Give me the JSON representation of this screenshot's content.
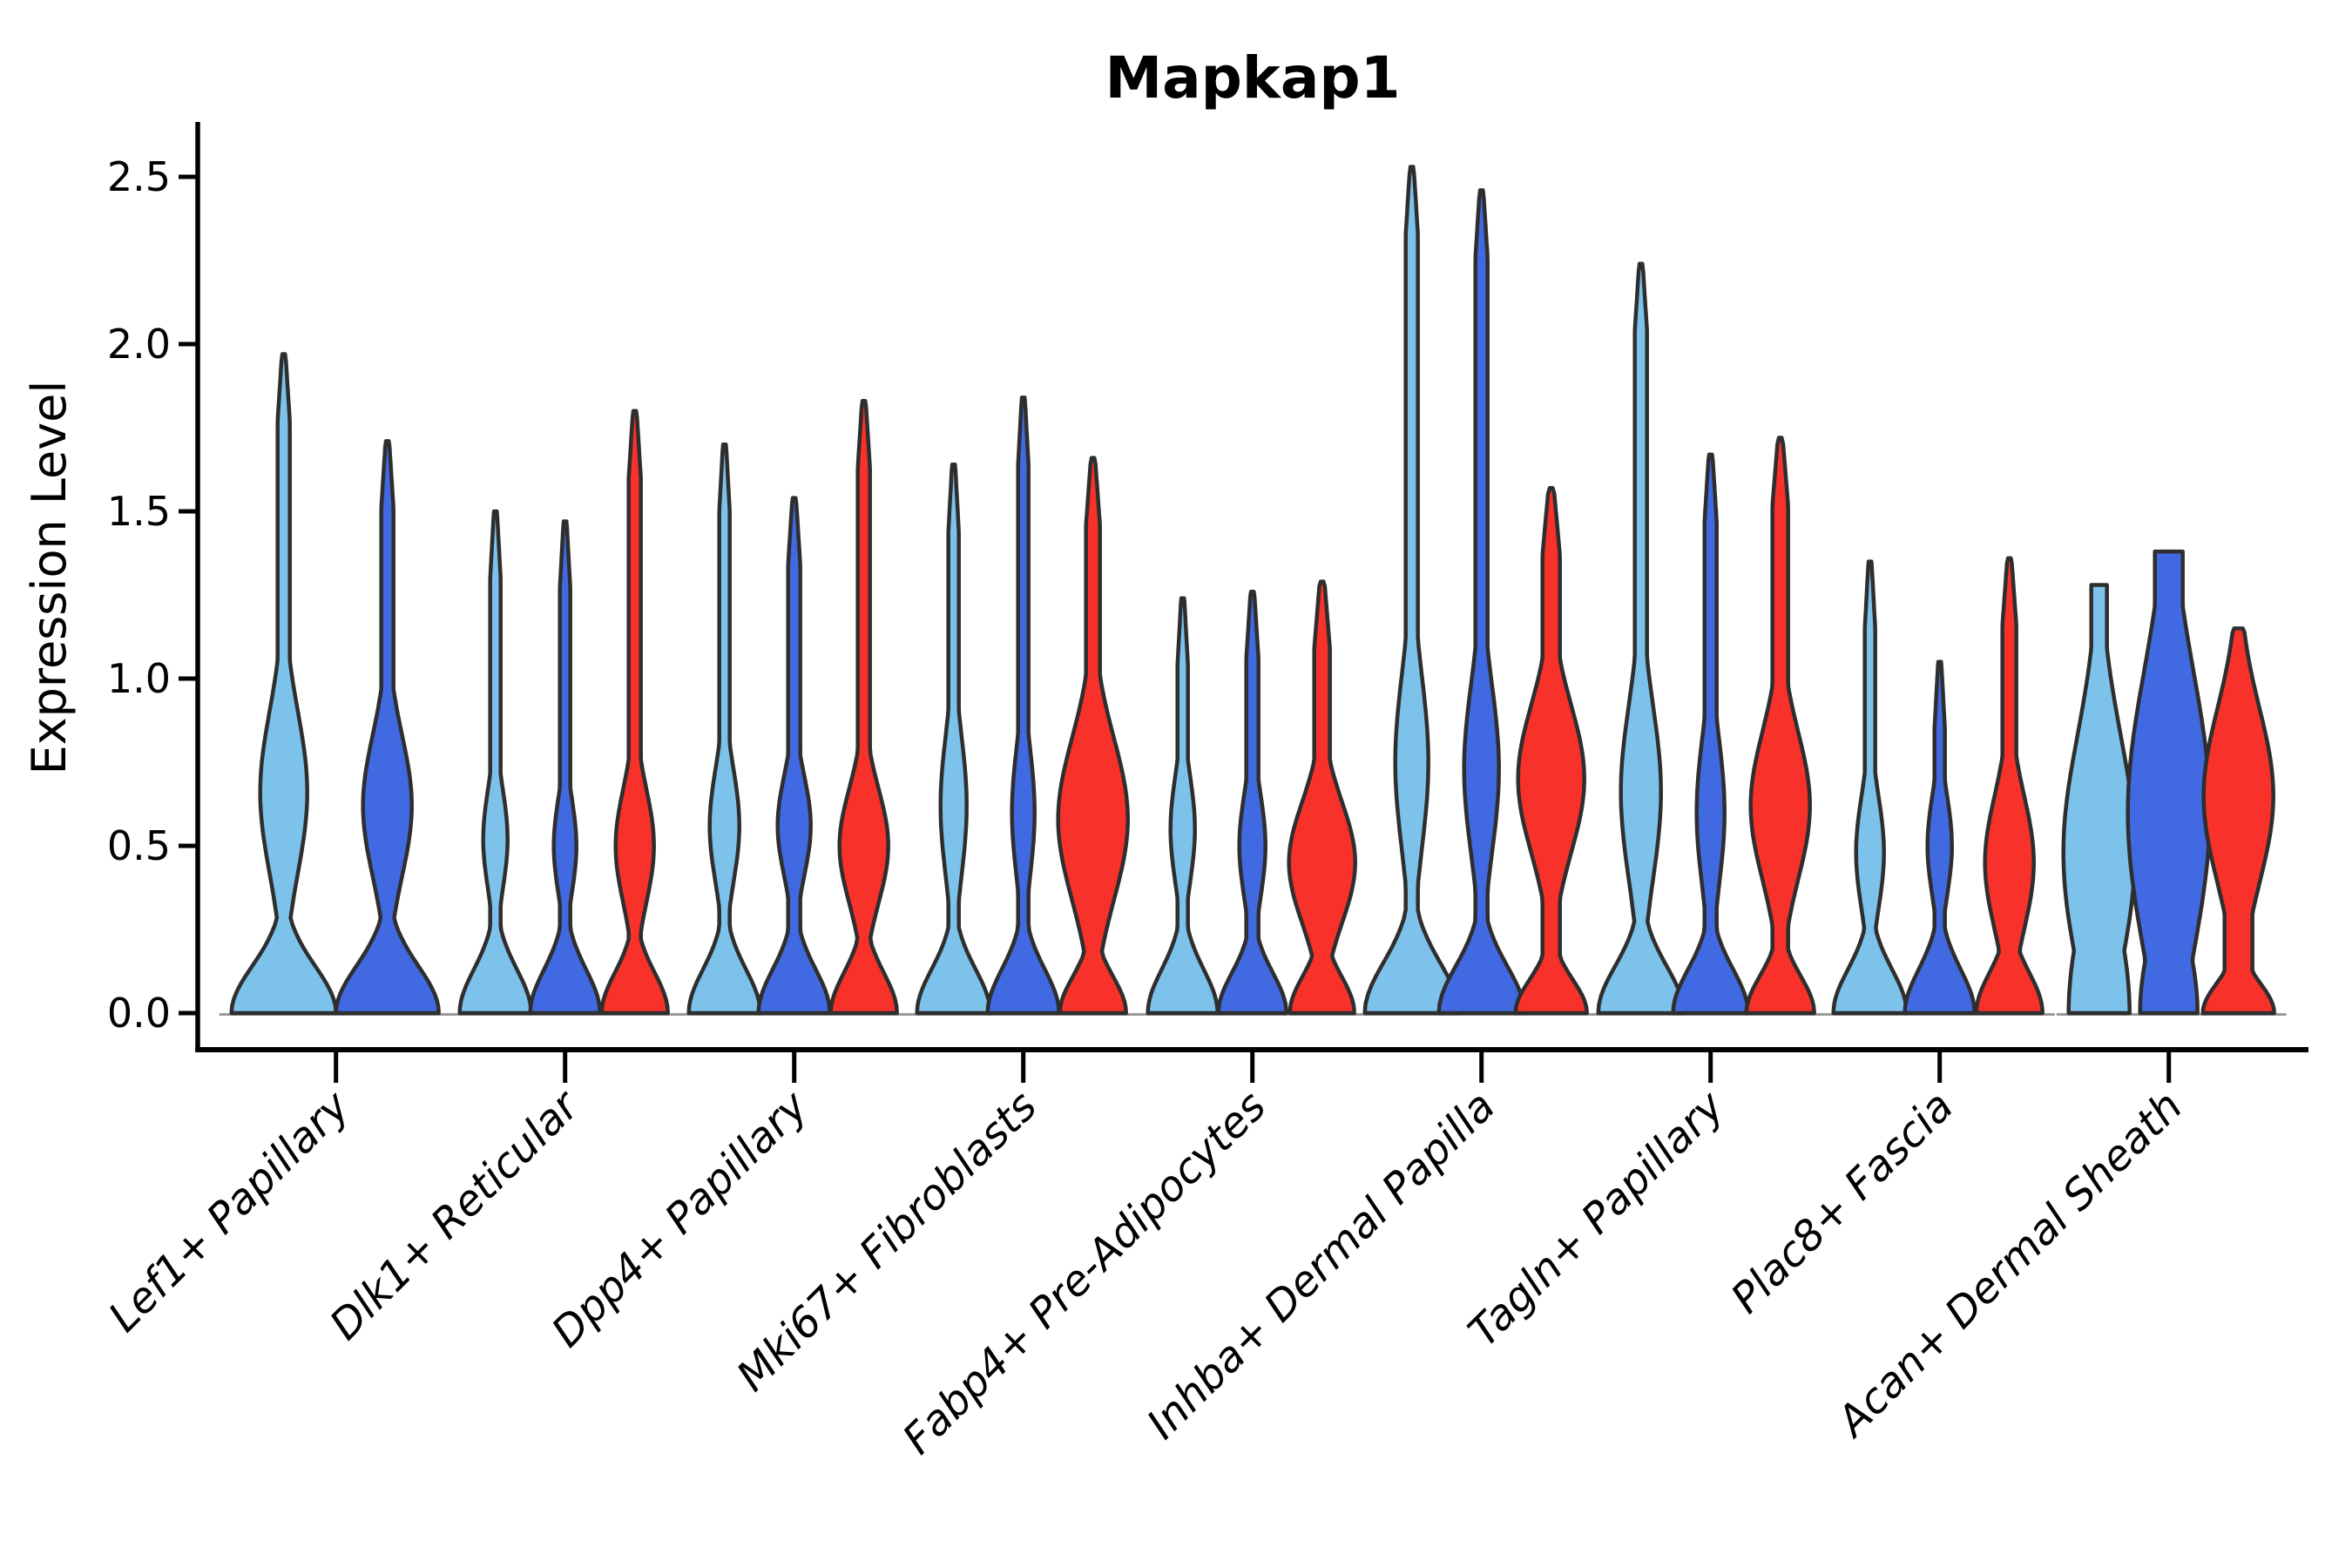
{
  "chart_data": {
    "type": "violin",
    "title": "Mapkap1",
    "ylabel": "Expression Level",
    "xlabel": "",
    "ytick_labels": [
      "0.0",
      "0.5",
      "1.0",
      "1.5",
      "2.0",
      "2.5"
    ],
    "ytick_values": [
      0.0,
      0.5,
      1.0,
      1.5,
      2.0,
      2.5
    ],
    "ylim": [
      -0.13,
      2.65
    ],
    "grid": false,
    "legend_position": "none",
    "colors": {
      "light_blue": "#7CC2EA",
      "blue": "#4169E1",
      "red": "#F8312A",
      "edge": "#2E2E2E",
      "baseline": "#999999",
      "axis": "#000000"
    },
    "categories": [
      "Lef1+ Papillary",
      "Dlk1+ Reticular",
      "Dpp4+ Papillary",
      "Mki67+ Fibroblasts",
      "Fabp4+ Pre-Adipocytes",
      "Inhba+ Dermal Papilla",
      "Tagln+ Papillary",
      "Plac8+ Fascia",
      "Acan+ Dermal Sheath"
    ],
    "series_note": "Each cluster shows up to 3 split violins left-to-right: light_blue, blue, red. Lef1+ Papillary has no red violin.",
    "violins": [
      {
        "group": 0,
        "color": "light_blue",
        "x_offset": -60,
        "max": 1.97,
        "base_hw": 60,
        "base_sigma": 0.14,
        "stem_hw": 7,
        "bulge_center": 0.66,
        "bulge_hw": 27,
        "bulge_sigma": 0.24,
        "tip_hw": 0
      },
      {
        "group": 0,
        "color": "blue",
        "x_offset": 59,
        "max": 1.71,
        "base_hw": 59,
        "base_sigma": 0.14,
        "stem_hw": 7,
        "bulge_center": 0.62,
        "bulge_hw": 28,
        "bulge_sigma": 0.21,
        "tip_hw": 0
      },
      {
        "group": 1,
        "color": "light_blue",
        "x_offset": -80,
        "max": 1.5,
        "base_hw": 41,
        "base_sigma": 0.13,
        "stem_hw": 6,
        "bulge_center": 0.52,
        "bulge_hw": 14,
        "bulge_sigma": 0.15,
        "tip_hw": 0
      },
      {
        "group": 1,
        "color": "blue",
        "x_offset": 0,
        "max": 1.47,
        "base_hw": 40,
        "base_sigma": 0.13,
        "stem_hw": 6,
        "bulge_center": 0.5,
        "bulge_hw": 13,
        "bulge_sigma": 0.14,
        "tip_hw": 0
      },
      {
        "group": 1,
        "color": "red",
        "x_offset": 80,
        "max": 1.8,
        "base_hw": 38,
        "base_sigma": 0.12,
        "stem_hw": 7,
        "bulge_center": 0.5,
        "bulge_hw": 22,
        "bulge_sigma": 0.17,
        "tip_hw": 0
      },
      {
        "group": 2,
        "color": "light_blue",
        "x_offset": -80,
        "max": 1.7,
        "base_hw": 41,
        "base_sigma": 0.13,
        "stem_hw": 6,
        "bulge_center": 0.56,
        "bulge_hw": 17,
        "bulge_sigma": 0.17,
        "tip_hw": 0
      },
      {
        "group": 2,
        "color": "blue",
        "x_offset": 0,
        "max": 1.54,
        "base_hw": 41,
        "base_sigma": 0.13,
        "stem_hw": 7,
        "bulge_center": 0.56,
        "bulge_hw": 19,
        "bulge_sigma": 0.15,
        "tip_hw": 0
      },
      {
        "group": 2,
        "color": "red",
        "x_offset": 80,
        "max": 1.83,
        "base_hw": 38,
        "base_sigma": 0.12,
        "stem_hw": 7,
        "bulge_center": 0.5,
        "bulge_hw": 28,
        "bulge_sigma": 0.17,
        "tip_hw": 0
      },
      {
        "group": 3,
        "color": "light_blue",
        "x_offset": -80,
        "max": 1.64,
        "base_hw": 42,
        "base_sigma": 0.13,
        "stem_hw": 6,
        "bulge_center": 0.62,
        "bulge_hw": 15,
        "bulge_sigma": 0.21,
        "tip_hw": 0
      },
      {
        "group": 3,
        "color": "blue",
        "x_offset": 0,
        "max": 1.84,
        "base_hw": 41,
        "base_sigma": 0.13,
        "stem_hw": 6,
        "bulge_center": 0.6,
        "bulge_hw": 13,
        "bulge_sigma": 0.19,
        "tip_hw": 0
      },
      {
        "group": 3,
        "color": "red",
        "x_offset": 80,
        "max": 1.66,
        "base_hw": 38,
        "base_sigma": 0.11,
        "stem_hw": 8,
        "bulge_center": 0.58,
        "bulge_hw": 40,
        "bulge_sigma": 0.24,
        "tip_hw": 0
      },
      {
        "group": 4,
        "color": "light_blue",
        "x_offset": -80,
        "max": 1.24,
        "base_hw": 40,
        "base_sigma": 0.13,
        "stem_hw": 6,
        "bulge_center": 0.55,
        "bulge_hw": 14,
        "bulge_sigma": 0.16,
        "tip_hw": 0
      },
      {
        "group": 4,
        "color": "blue",
        "x_offset": 0,
        "max": 1.26,
        "base_hw": 39,
        "base_sigma": 0.12,
        "stem_hw": 7,
        "bulge_center": 0.5,
        "bulge_hw": 15,
        "bulge_sigma": 0.16,
        "tip_hw": 0
      },
      {
        "group": 4,
        "color": "red",
        "x_offset": 80,
        "max": 1.29,
        "base_hw": 37,
        "base_sigma": 0.11,
        "stem_hw": 9,
        "bulge_center": 0.45,
        "bulge_hw": 38,
        "bulge_sigma": 0.18,
        "tip_hw": 0
      },
      {
        "group": 5,
        "color": "light_blue",
        "x_offset": -80,
        "max": 2.53,
        "base_hw": 54,
        "base_sigma": 0.15,
        "stem_hw": 7,
        "bulge_center": 0.75,
        "bulge_hw": 19,
        "bulge_sigma": 0.26,
        "tip_hw": 0
      },
      {
        "group": 5,
        "color": "blue",
        "x_offset": 0,
        "max": 2.46,
        "base_hw": 49,
        "base_sigma": 0.14,
        "stem_hw": 7,
        "bulge_center": 0.73,
        "bulge_hw": 20,
        "bulge_sigma": 0.25,
        "tip_hw": 0
      },
      {
        "group": 5,
        "color": "red",
        "x_offset": 80,
        "max": 1.57,
        "base_hw": 41,
        "base_sigma": 0.1,
        "stem_hw": 10,
        "bulge_center": 0.7,
        "bulge_hw": 38,
        "bulge_sigma": 0.22,
        "tip_hw": 0
      },
      {
        "group": 6,
        "color": "light_blue",
        "x_offset": -80,
        "max": 2.24,
        "base_hw": 49,
        "base_sigma": 0.14,
        "stem_hw": 7,
        "bulge_center": 0.66,
        "bulge_hw": 23,
        "bulge_sigma": 0.26,
        "tip_hw": 0
      },
      {
        "group": 6,
        "color": "blue",
        "x_offset": 0,
        "max": 1.67,
        "base_hw": 43,
        "base_sigma": 0.13,
        "stem_hw": 7,
        "bulge_center": 0.6,
        "bulge_hw": 16,
        "bulge_sigma": 0.22,
        "tip_hw": 0
      },
      {
        "group": 6,
        "color": "red",
        "x_offset": 80,
        "max": 1.72,
        "base_hw": 39,
        "base_sigma": 0.11,
        "stem_hw": 9,
        "bulge_center": 0.62,
        "bulge_hw": 34,
        "bulge_sigma": 0.22,
        "tip_hw": 0
      },
      {
        "group": 7,
        "color": "light_blue",
        "x_offset": -80,
        "max": 1.35,
        "base_hw": 42,
        "base_sigma": 0.13,
        "stem_hw": 6,
        "bulge_center": 0.48,
        "bulge_hw": 16,
        "bulge_sigma": 0.17,
        "tip_hw": 0
      },
      {
        "group": 7,
        "color": "blue",
        "x_offset": 0,
        "max": 1.05,
        "base_hw": 40,
        "base_sigma": 0.13,
        "stem_hw": 6,
        "bulge_center": 0.5,
        "bulge_hw": 14,
        "bulge_sigma": 0.15,
        "tip_hw": 0
      },
      {
        "group": 7,
        "color": "red",
        "x_offset": 80,
        "max": 1.36,
        "base_hw": 38,
        "base_sigma": 0.12,
        "stem_hw": 8,
        "bulge_center": 0.45,
        "bulge_hw": 28,
        "bulge_sigma": 0.2,
        "tip_hw": 0
      },
      {
        "group": 8,
        "color": "light_blue",
        "x_offset": -80,
        "max": 1.28,
        "base_hw": 35,
        "base_sigma": 0.3,
        "stem_hw": 9,
        "bulge_center": 0.48,
        "bulge_hw": 41,
        "bulge_sigma": 0.35,
        "tip_hw": 9
      },
      {
        "group": 8,
        "color": "blue",
        "x_offset": 0,
        "max": 1.38,
        "base_hw": 33,
        "base_sigma": 0.25,
        "stem_hw": 12,
        "bulge_center": 0.6,
        "bulge_hw": 47,
        "bulge_sigma": 0.42,
        "tip_hw": 16
      },
      {
        "group": 8,
        "color": "red",
        "x_offset": 80,
        "max": 1.15,
        "base_hw": 41,
        "base_sigma": 0.09,
        "stem_hw": 16,
        "bulge_center": 0.65,
        "bulge_hw": 40,
        "bulge_sigma": 0.26,
        "tip_hw": 5
      }
    ]
  }
}
